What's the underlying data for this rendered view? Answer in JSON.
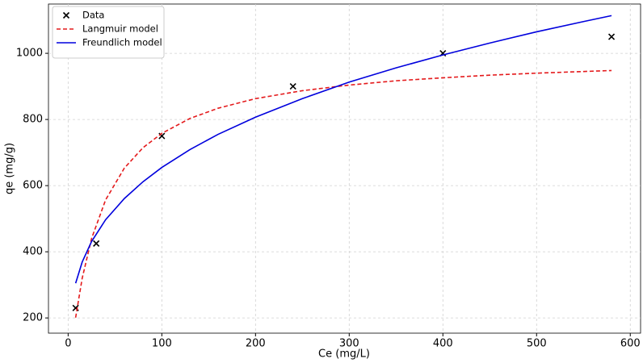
{
  "chart_data": {
    "type": "line",
    "xlabel": "Ce (mg/L)",
    "ylabel": "qe (mg/g)",
    "xlim": [
      -21,
      611
    ],
    "ylim": [
      154,
      1149
    ],
    "xticks": [
      0,
      100,
      200,
      300,
      400,
      500,
      600
    ],
    "yticks": [
      200,
      400,
      600,
      800,
      1000
    ],
    "grid": true,
    "legend": "upper-left",
    "series": [
      {
        "name": "Data",
        "style": "markers",
        "color": "#000000",
        "x": [
          8,
          30,
          100,
          240,
          400,
          580
        ],
        "values": [
          230,
          425,
          750,
          900,
          1000,
          1050
        ]
      },
      {
        "name": "Langmuir model",
        "style": "dashed",
        "color": "#e41a1c",
        "x": [
          8,
          15,
          25,
          40,
          60,
          80,
          100,
          130,
          160,
          200,
          250,
          300,
          350,
          400,
          450,
          500,
          550,
          580
        ],
        "values": [
          201,
          320,
          440,
          557,
          653,
          715,
          758,
          803,
          834,
          863,
          887,
          904,
          917,
          926,
          934,
          940,
          945,
          948
        ]
      },
      {
        "name": "Freundlich model",
        "style": "solid",
        "color": "#0000dd",
        "x": [
          8,
          15,
          25,
          40,
          60,
          80,
          100,
          130,
          160,
          200,
          250,
          300,
          350,
          400,
          450,
          500,
          550,
          580
        ],
        "values": [
          305,
          369,
          431,
          497,
          561,
          612,
          655,
          709,
          755,
          807,
          863,
          913,
          956,
          995,
          1031,
          1065,
          1096,
          1114
        ]
      }
    ]
  }
}
